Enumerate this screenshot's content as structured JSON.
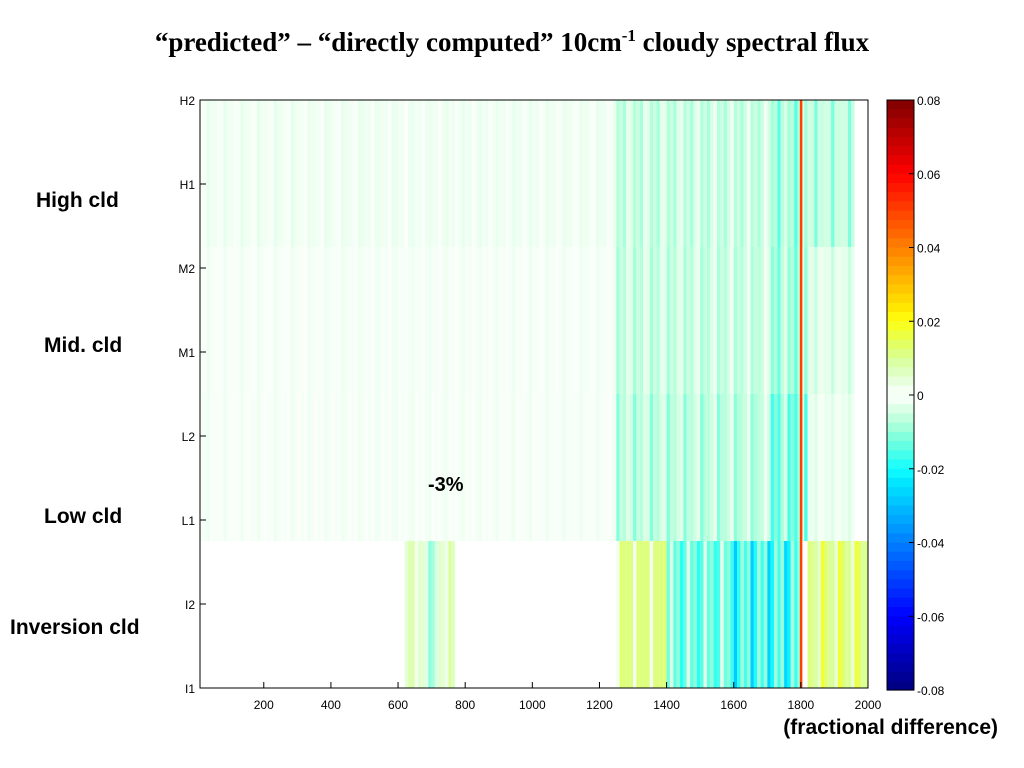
{
  "title": {
    "main": "“predicted” – “directly computed” 10cm",
    "sup": "-1",
    "tail": " cloudy spectral flux"
  },
  "group_labels": [
    {
      "key": "high",
      "text": "High cld"
    },
    {
      "key": "mid",
      "text": "Mid. cld"
    },
    {
      "key": "low",
      "text": "Low cld"
    },
    {
      "key": "inversion",
      "text": "Inversion cld"
    }
  ],
  "annotation": "-3%",
  "footer": "(fractional difference)",
  "chart_data": {
    "type": "heatmap",
    "title": "“predicted” – “directly computed” 10cm-1 cloudy spectral flux",
    "x_ticks": [
      200,
      400,
      600,
      800,
      1000,
      1200,
      1400,
      1600,
      1800,
      2000
    ],
    "xlim": [
      10,
      2000
    ],
    "bin_width": 10,
    "rows": [
      "H2",
      "H1",
      "M2",
      "M1",
      "L2",
      "L1",
      "I2",
      "I1"
    ],
    "colorbar": {
      "ticks": [
        0.08,
        0.06,
        0.04,
        0.02,
        0,
        -0.02,
        -0.04,
        -0.06,
        -0.08
      ],
      "range": [
        -0.08,
        0.08
      ],
      "colormap": "jet-with-white-center"
    },
    "regions": [
      {
        "rows": [
          "H2",
          "H1"
        ],
        "x_range": [
          10,
          1250
        ],
        "value": -0.003
      },
      {
        "rows": [
          "H2",
          "H1"
        ],
        "x_range": [
          1250,
          1700
        ],
        "value": -0.01
      },
      {
        "rows": [
          "H2",
          "H1"
        ],
        "x_range": [
          1700,
          1820
        ],
        "value": -0.015
      },
      {
        "rows": [
          "H2",
          "H1"
        ],
        "x_range": [
          1820,
          1960
        ],
        "value": -0.012
      },
      {
        "rows": [
          "M2",
          "M1"
        ],
        "x_range": [
          10,
          1250
        ],
        "value": -0.002
      },
      {
        "rows": [
          "M2",
          "M1"
        ],
        "x_range": [
          1250,
          1700
        ],
        "value": -0.01
      },
      {
        "rows": [
          "M2",
          "M1"
        ],
        "x_range": [
          1700,
          1820
        ],
        "value": -0.015
      },
      {
        "rows": [
          "M2",
          "M1"
        ],
        "x_range": [
          1820,
          1960
        ],
        "value": -0.006
      },
      {
        "rows": [
          "L2",
          "L1"
        ],
        "x_range": [
          10,
          1250
        ],
        "value": -0.002
      },
      {
        "rows": [
          "L2",
          "L1"
        ],
        "x_range": [
          1250,
          1700
        ],
        "value": -0.012
      },
      {
        "rows": [
          "L2",
          "L1"
        ],
        "x_range": [
          1700,
          1820
        ],
        "value": -0.02
      },
      {
        "rows": [
          "L2",
          "L1"
        ],
        "x_range": [
          1820,
          1960
        ],
        "value": -0.004
      },
      {
        "rows": [
          "I2",
          "I1"
        ],
        "x_range": [
          620,
          680
        ],
        "value": 0.01
      },
      {
        "rows": [
          "I2",
          "I1"
        ],
        "x_range": [
          680,
          720
        ],
        "value": -0.012
      },
      {
        "rows": [
          "I2",
          "I1"
        ],
        "x_range": [
          720,
          770
        ],
        "value": 0.01
      },
      {
        "rows": [
          "I2",
          "I1"
        ],
        "x_range": [
          1250,
          1400
        ],
        "value": 0.018
      },
      {
        "rows": [
          "I2",
          "I1"
        ],
        "x_range": [
          1400,
          1600
        ],
        "value": -0.022
      },
      {
        "rows": [
          "I2",
          "I1"
        ],
        "x_range": [
          1600,
          1800
        ],
        "value": -0.03
      },
      {
        "rows": [
          "I2",
          "I1"
        ],
        "x_range": [
          1820,
          2000
        ],
        "value": 0.02
      }
    ],
    "highlight_line": {
      "x": 1800,
      "value": 0.05
    }
  }
}
